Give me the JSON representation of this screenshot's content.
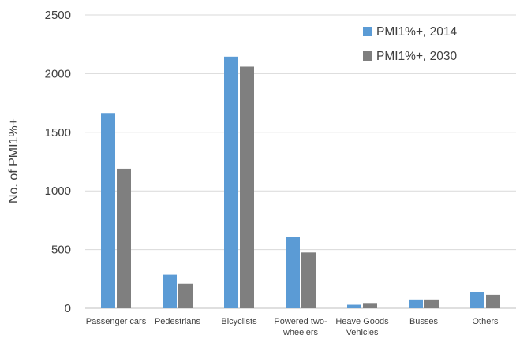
{
  "chart_data": {
    "type": "bar",
    "title": "",
    "xlabel": "",
    "ylabel": "No. of PMI1%+",
    "ylim": [
      0,
      2500
    ],
    "yticks": [
      0,
      500,
      1000,
      1500,
      2000,
      2500
    ],
    "grid": true,
    "legend_position": "top-right",
    "categories": [
      [
        "Passenger cars"
      ],
      [
        "Pedestrians"
      ],
      [
        "Bicyclists"
      ],
      [
        "Powered two-",
        "wheelers"
      ],
      [
        "Heave Goods",
        "Vehicles"
      ],
      [
        "Busses"
      ],
      [
        "Others"
      ]
    ],
    "series": [
      {
        "name": "PMI1%+, 2014",
        "color": "#5b9bd5",
        "values": [
          1665,
          285,
          2145,
          610,
          30,
          75,
          135
        ]
      },
      {
        "name": "PMI1%+, 2030",
        "color": "#7f7f7f",
        "values": [
          1190,
          210,
          2060,
          475,
          45,
          75,
          115
        ]
      }
    ]
  }
}
